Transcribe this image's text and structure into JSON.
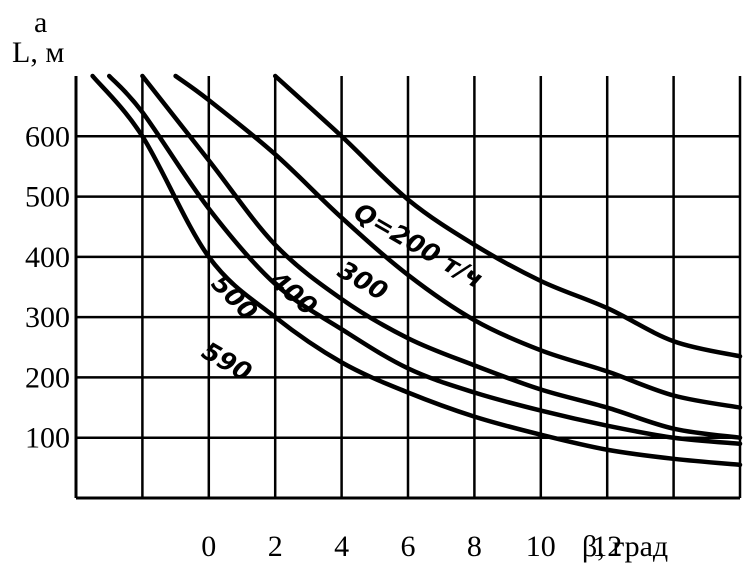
{
  "chart_data": {
    "type": "line",
    "panel_label": "а",
    "ylabel": "L, м",
    "xlabel": "β, град",
    "x_ticks": [
      "0",
      "2",
      "4",
      "6",
      "8",
      "10",
      "12"
    ],
    "y_ticks": [
      "100",
      "200",
      "300",
      "400",
      "500",
      "600"
    ],
    "xlim": [
      -4,
      16
    ],
    "ylim": [
      0,
      700
    ],
    "grid": true,
    "series": [
      {
        "name": "Q=200 т/ч",
        "x": [
          2,
          4,
          6,
          8,
          10,
          12,
          14,
          16
        ],
        "values": [
          700,
          600,
          495,
          420,
          360,
          315,
          260,
          235
        ]
      },
      {
        "name": "300",
        "x": [
          -1,
          0,
          2,
          4,
          6,
          8,
          10,
          12,
          14,
          16
        ],
        "values": [
          700,
          660,
          570,
          465,
          370,
          295,
          245,
          210,
          170,
          150
        ]
      },
      {
        "name": "400",
        "x": [
          -2,
          0,
          2,
          4,
          6,
          8,
          10,
          12,
          14,
          16
        ],
        "values": [
          700,
          560,
          420,
          330,
          265,
          220,
          180,
          150,
          115,
          100
        ]
      },
      {
        "name": "500",
        "x": [
          -3,
          -2,
          0,
          2,
          4,
          6,
          8,
          10,
          12,
          14,
          16
        ],
        "values": [
          700,
          640,
          480,
          355,
          280,
          215,
          175,
          145,
          120,
          100,
          90
        ]
      },
      {
        "name": "590",
        "x": [
          -3.5,
          -2,
          0,
          2,
          4,
          6,
          8,
          10,
          12,
          14,
          16
        ],
        "values": [
          700,
          600,
          400,
          300,
          225,
          175,
          135,
          105,
          80,
          65,
          55
        ]
      }
    ]
  }
}
